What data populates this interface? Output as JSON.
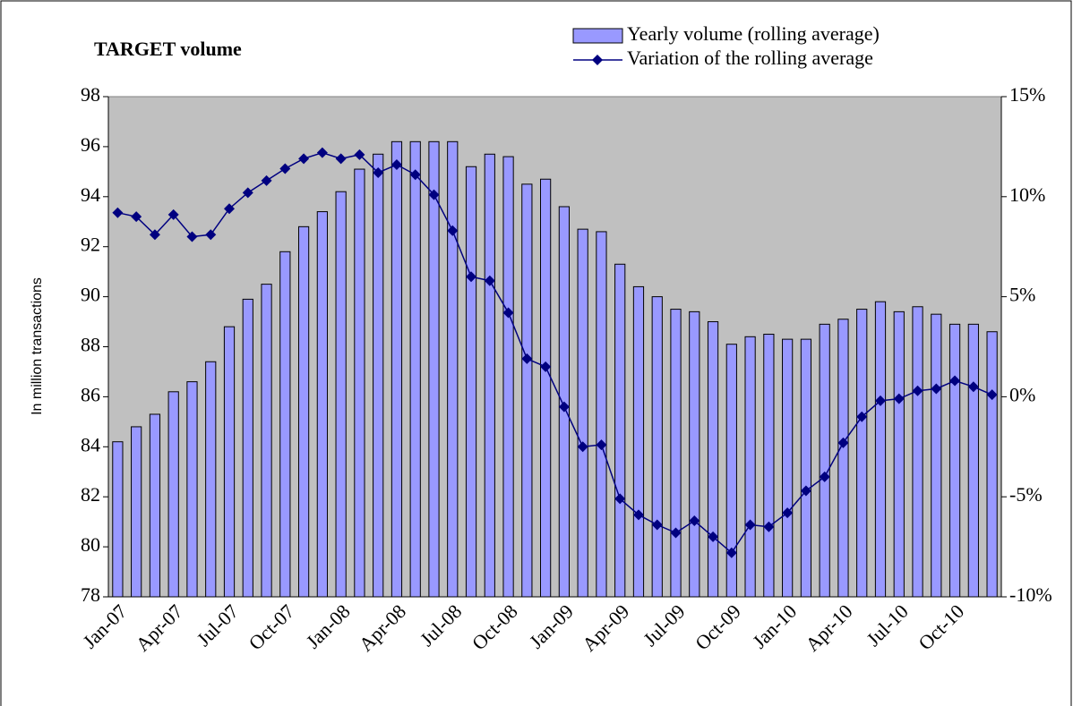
{
  "chart_data": {
    "type": "bar_line",
    "title": "TARGET volume",
    "y_label": "In million transactions",
    "categories": [
      "Jan-07",
      null,
      null,
      "Apr-07",
      null,
      null,
      "Jul-07",
      null,
      null,
      "Oct-07",
      null,
      null,
      "Jan-08",
      null,
      null,
      "Apr-08",
      null,
      null,
      "Jul-08",
      null,
      null,
      "Oct-08",
      null,
      null,
      "Jan-09",
      null,
      null,
      "Apr-09",
      null,
      null,
      "Jul-09",
      null,
      null,
      "Oct-09",
      null,
      null,
      "Jan-10",
      null,
      null,
      "Apr-10",
      null,
      null,
      "Jul-10",
      null,
      null,
      "Oct-10",
      null,
      null
    ],
    "series": [
      {
        "name": "Yearly volume (rolling average)",
        "color": "#9999ff",
        "type": "bar",
        "values": [
          84.2,
          84.8,
          85.3,
          86.2,
          86.6,
          87.4,
          88.8,
          89.9,
          90.5,
          91.8,
          92.8,
          93.4,
          94.2,
          95.1,
          95.7,
          96.2,
          96.2,
          96.2,
          96.2,
          95.2,
          95.7,
          95.6,
          94.5,
          94.7,
          93.6,
          92.7,
          92.6,
          91.3,
          90.4,
          90.0,
          89.5,
          89.4,
          89.0,
          88.1,
          88.4,
          88.5,
          88.3,
          88.3,
          88.9,
          89.1,
          89.5,
          89.8,
          89.4,
          89.6,
          89.3,
          88.9,
          88.9,
          88.6
        ]
      },
      {
        "name": "Variation of the rolling average",
        "color": "#000080",
        "type": "line",
        "axis": "y2",
        "values": [
          9.2,
          9.0,
          8.1,
          9.1,
          8.0,
          8.1,
          9.4,
          10.2,
          10.8,
          11.4,
          11.9,
          12.2,
          11.9,
          12.1,
          11.2,
          11.6,
          11.1,
          10.1,
          8.3,
          6.0,
          5.8,
          4.2,
          1.9,
          1.5,
          -0.5,
          -2.5,
          -2.4,
          -5.1,
          -5.9,
          -6.4,
          -6.8,
          -6.2,
          -7.0,
          -7.8,
          -6.4,
          -6.5,
          -5.8,
          -4.7,
          -4.0,
          -2.3,
          -1.0,
          -0.2,
          -0.1,
          0.3,
          0.4,
          0.8,
          0.5,
          0.1
        ]
      }
    ],
    "ylim": [
      78,
      98
    ],
    "yticks": [
      78,
      80,
      82,
      84,
      86,
      88,
      90,
      92,
      94,
      96,
      98
    ],
    "y2lim": [
      -10,
      15
    ],
    "y2ticks": [
      {
        "value": -10,
        "label": "-10%"
      },
      {
        "value": -5,
        "label": "-5%"
      },
      {
        "value": 0,
        "label": "0%"
      },
      {
        "value": 5,
        "label": "5%"
      },
      {
        "value": 10,
        "label": "10%"
      },
      {
        "value": 15,
        "label": "15%"
      }
    ],
    "plot_background": "#c0c0c0",
    "legend": "top-right"
  }
}
